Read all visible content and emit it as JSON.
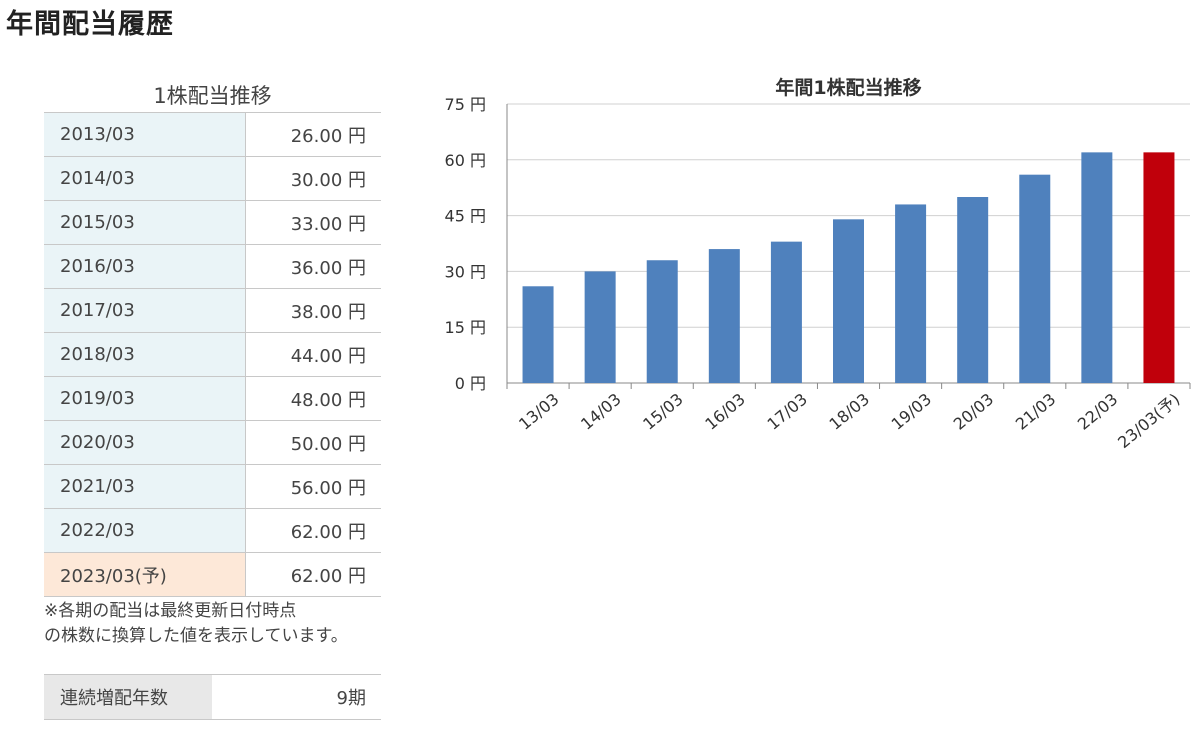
{
  "page": {
    "title": "年間配当履歴"
  },
  "table": {
    "caption": "1株配当推移",
    "rows": [
      {
        "period": "2013/03",
        "amount": "26.00 円"
      },
      {
        "period": "2014/03",
        "amount": "30.00 円"
      },
      {
        "period": "2015/03",
        "amount": "33.00 円"
      },
      {
        "period": "2016/03",
        "amount": "36.00 円"
      },
      {
        "period": "2017/03",
        "amount": "38.00 円"
      },
      {
        "period": "2018/03",
        "amount": "44.00 円"
      },
      {
        "period": "2019/03",
        "amount": "48.00 円"
      },
      {
        "period": "2020/03",
        "amount": "50.00 円"
      },
      {
        "period": "2021/03",
        "amount": "56.00 円"
      },
      {
        "period": "2022/03",
        "amount": "62.00 円"
      },
      {
        "period": "2023/03(予)",
        "amount": "62.00 円"
      }
    ],
    "note_line1": "※各期の配当は最終更新日付時点",
    "note_line2": "の株数に換算した値を表示しています。"
  },
  "streak": {
    "label": "連続増配年数",
    "value": "9期"
  },
  "colors": {
    "actual_bar": "#4f81bd",
    "forecast_bar": "#c0000b",
    "period_cell": "#eaf4f7",
    "forecast_cell": "#fde8d8"
  },
  "chart_data": {
    "type": "bar",
    "title": "年間1株配当推移",
    "categories": [
      "13/03",
      "14/03",
      "15/03",
      "16/03",
      "17/03",
      "18/03",
      "19/03",
      "20/03",
      "21/03",
      "22/03",
      "23/03(予)"
    ],
    "values": [
      26,
      30,
      33,
      36,
      38,
      44,
      48,
      50,
      56,
      62,
      62
    ],
    "forecast_index": 10,
    "ylim": [
      0,
      75
    ],
    "yticks": [
      0,
      15,
      30,
      45,
      60,
      75
    ],
    "ytick_suffix": " 円",
    "grid": true,
    "legend": "none"
  }
}
